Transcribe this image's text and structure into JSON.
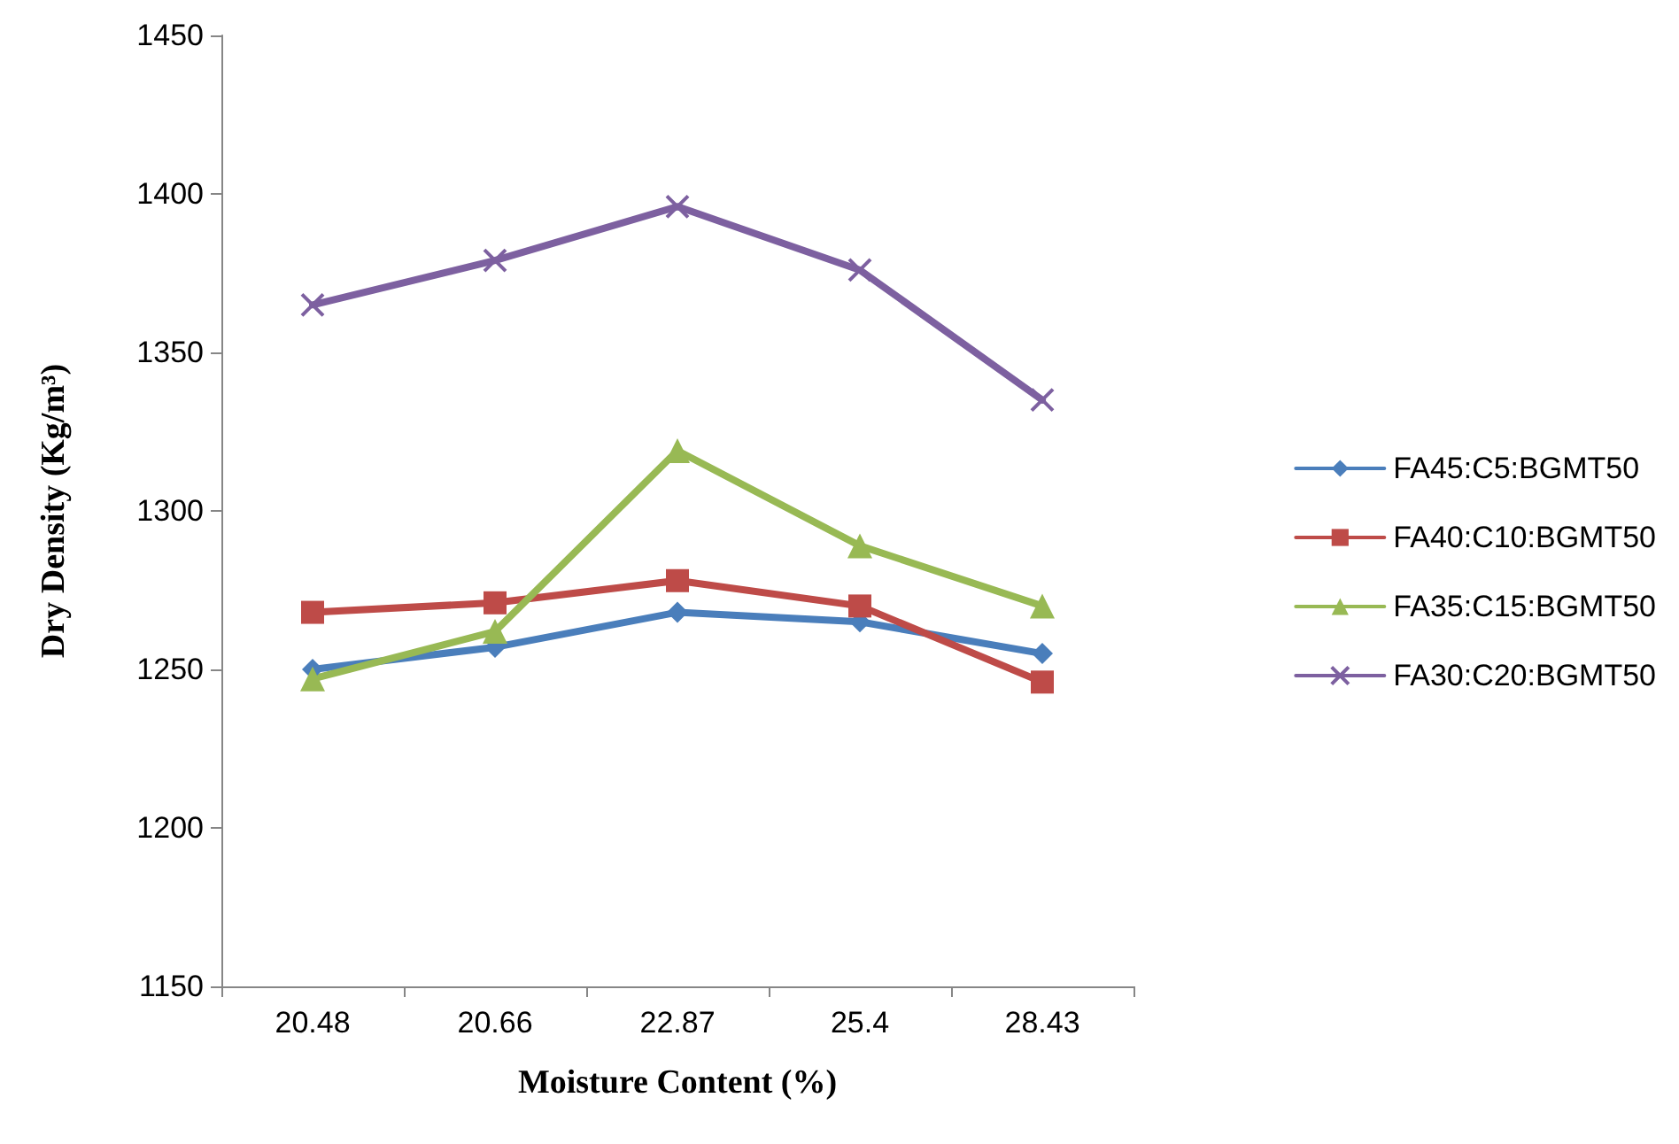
{
  "chart_data": {
    "type": "line",
    "xlabel": "Moisture Content (%)",
    "ylabel": "Dry Density (Kg/m³)",
    "categories": [
      "20.48",
      "20.66",
      "22.87",
      "25.4",
      "28.43"
    ],
    "series": [
      {
        "name": "FA45:C5:BGMT50",
        "color": "#4a7ebb",
        "marker": "diamond",
        "values": [
          1250,
          1257,
          1268,
          1265,
          1255
        ]
      },
      {
        "name": "FA40:C10:BGMT50",
        "color": "#be4b48",
        "marker": "square",
        "values": [
          1268,
          1271,
          1278,
          1270,
          1246
        ]
      },
      {
        "name": "FA35:C15:BGMT50",
        "color": "#98b954",
        "marker": "triangle",
        "values": [
          1247,
          1262,
          1319,
          1289,
          1270
        ]
      },
      {
        "name": "FA30:C20:BGMT50",
        "color": "#7d60a0",
        "marker": "cross",
        "values": [
          1365,
          1379,
          1396,
          1376,
          1335
        ]
      }
    ],
    "ylim": [
      1150,
      1450
    ],
    "yticks": [
      1150,
      1200,
      1250,
      1300,
      1350,
      1400,
      1450
    ],
    "grid": false,
    "legend": "right",
    "line_style": "solid"
  }
}
